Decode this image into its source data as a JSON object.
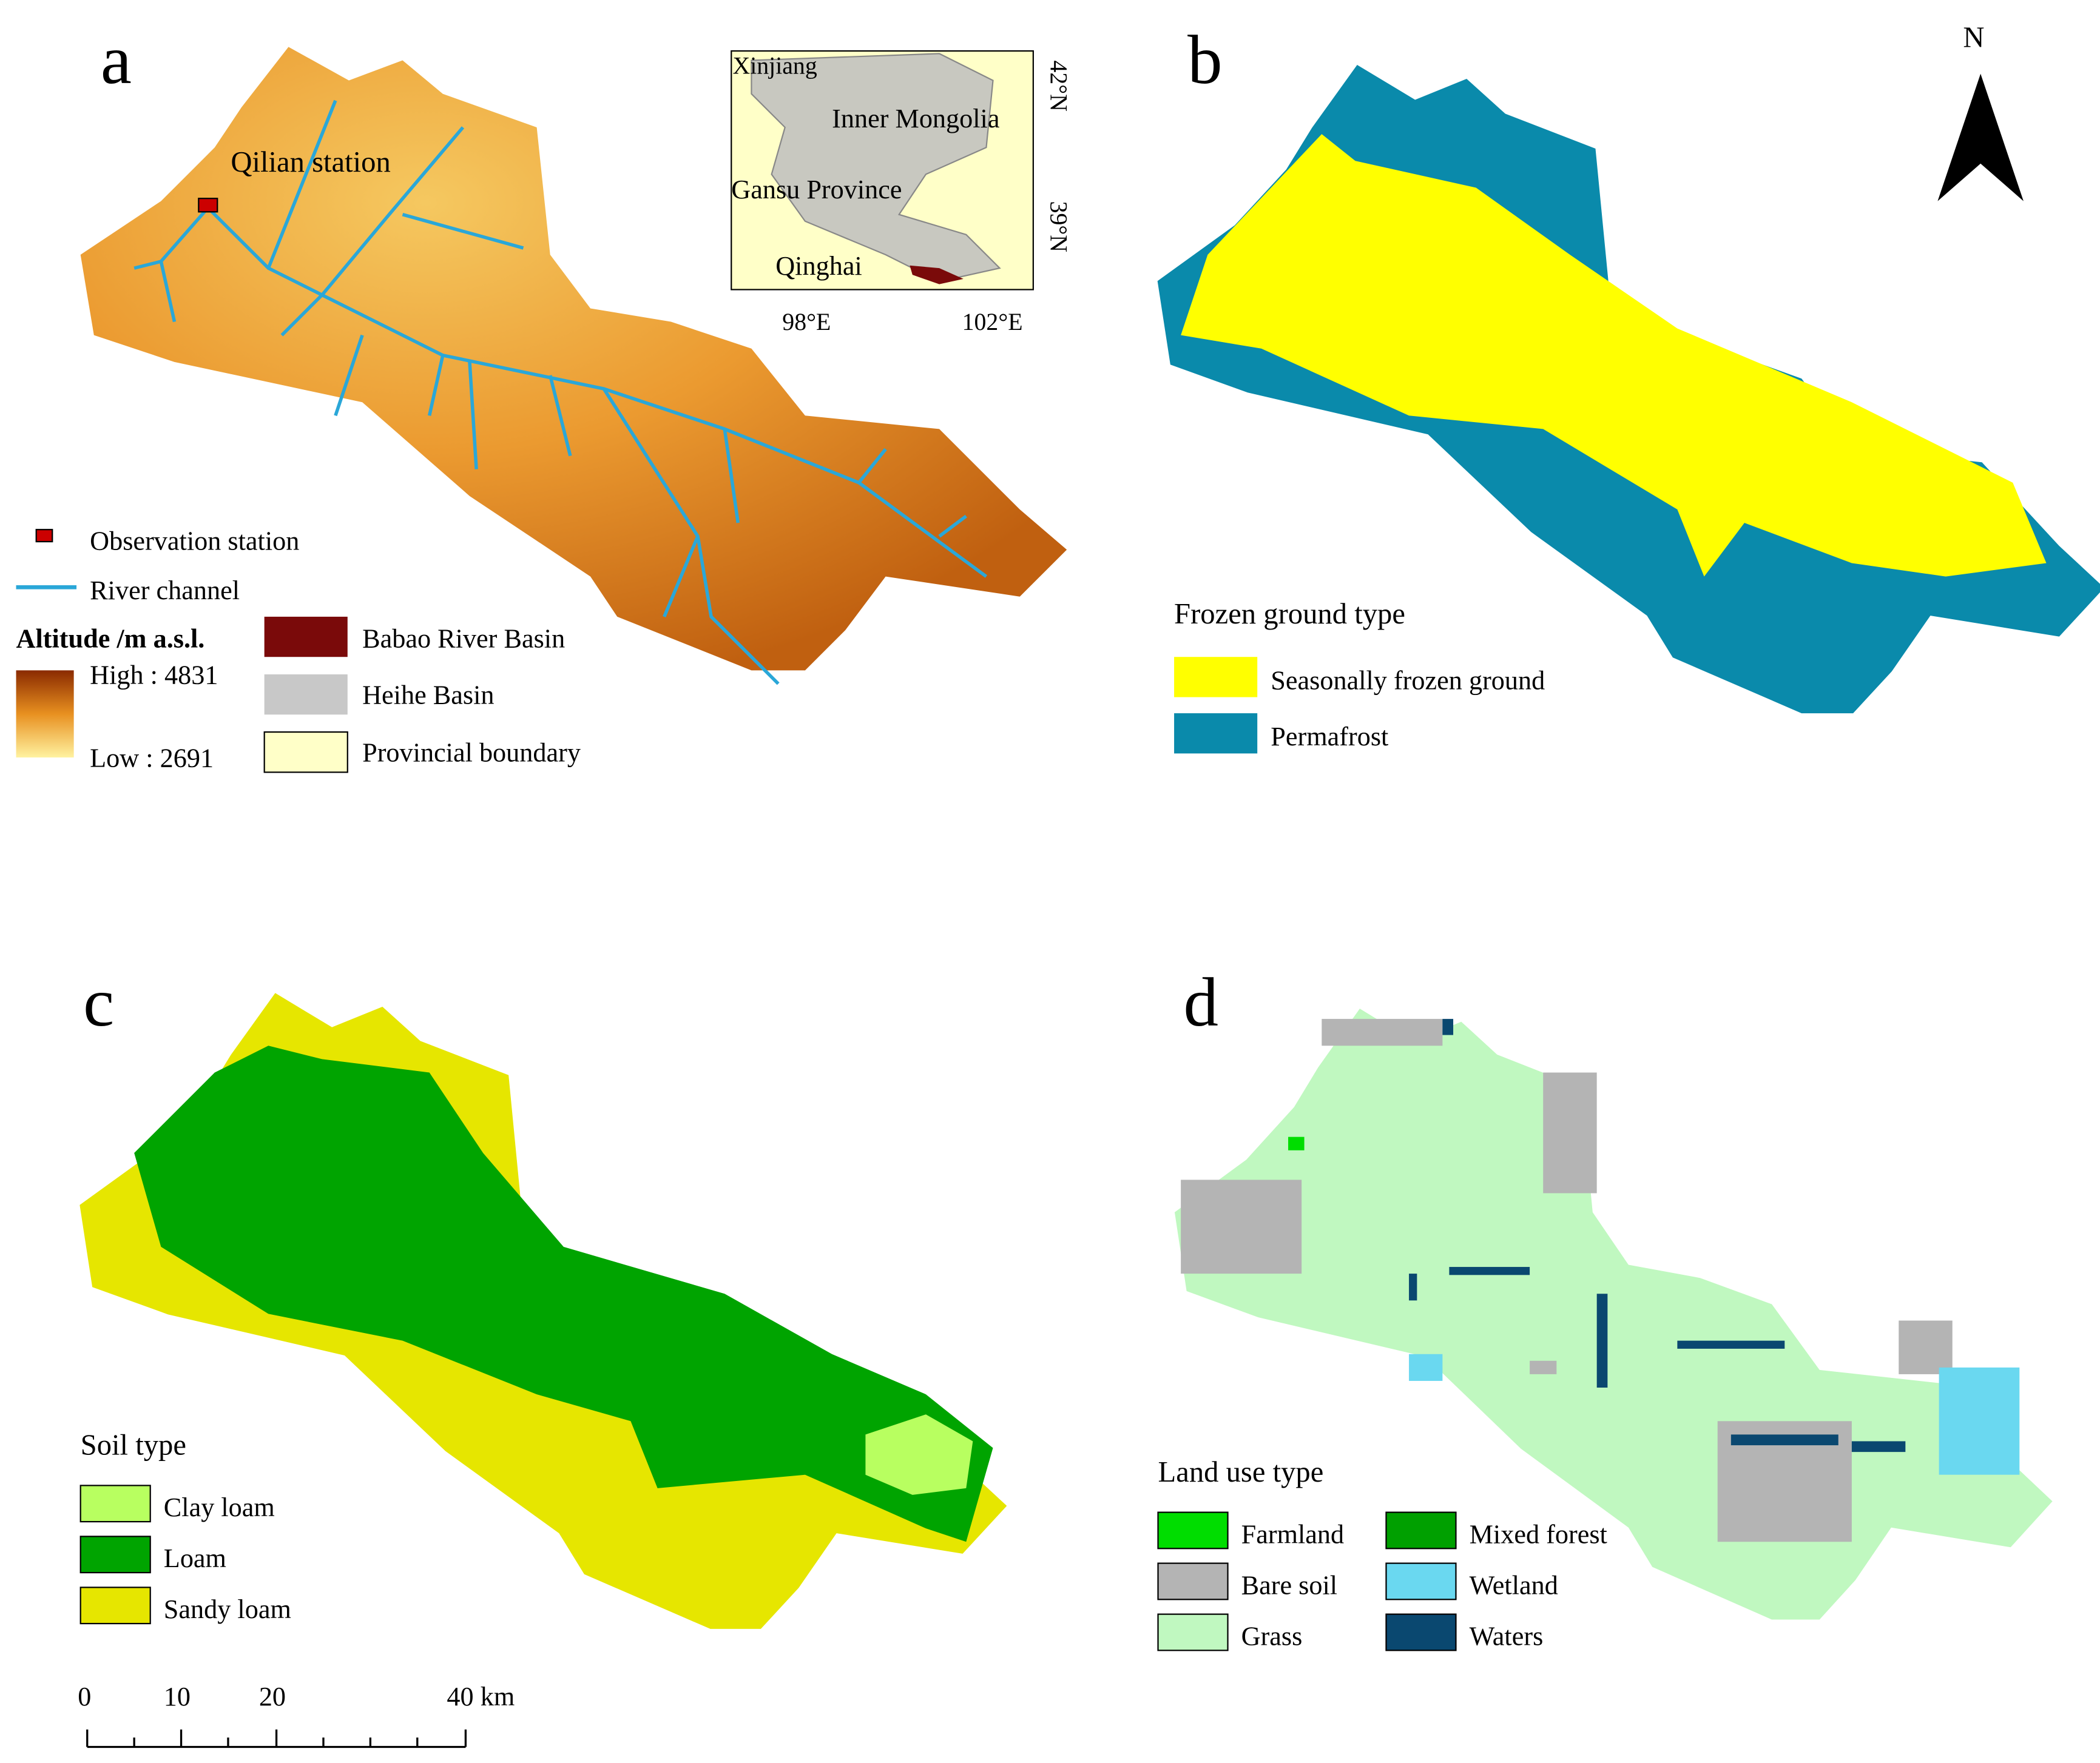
{
  "panel_a": {
    "label": "a",
    "station_label": "Qilian station",
    "inset": {
      "regions": [
        "Xinjiang",
        "Inner Mongolia",
        "Gansu Province",
        "Qinghai"
      ],
      "lat_ticks": [
        "42°N",
        "39°N"
      ],
      "lon_ticks": [
        "98°E",
        "102°E"
      ]
    },
    "legend": {
      "items": [
        "Observation station",
        "River channel"
      ],
      "altitude_title": "Altitude /m a.s.l.",
      "high": "High : 4831",
      "low": "Low : 2691",
      "areas": [
        "Babao River Basin",
        "Heihe Basin",
        "Provincial boundary"
      ]
    }
  },
  "panel_b": {
    "label": "b",
    "north": "N",
    "legend_title": "Frozen ground type",
    "items": [
      "Seasonally frozen ground",
      "Permafrost"
    ]
  },
  "panel_c": {
    "label": "c",
    "legend_title": "Soil type",
    "items": [
      "Clay loam",
      "Loam",
      "Sandy loam"
    ]
  },
  "scale_bar": {
    "labels": [
      "0",
      "10",
      "20",
      "40 km"
    ]
  },
  "panel_d": {
    "label": "d",
    "legend_title": "Land use type",
    "items": [
      "Farmland",
      "Mixed forest",
      "Bare soil",
      "Wetland",
      "Grass",
      "Waters"
    ]
  }
}
